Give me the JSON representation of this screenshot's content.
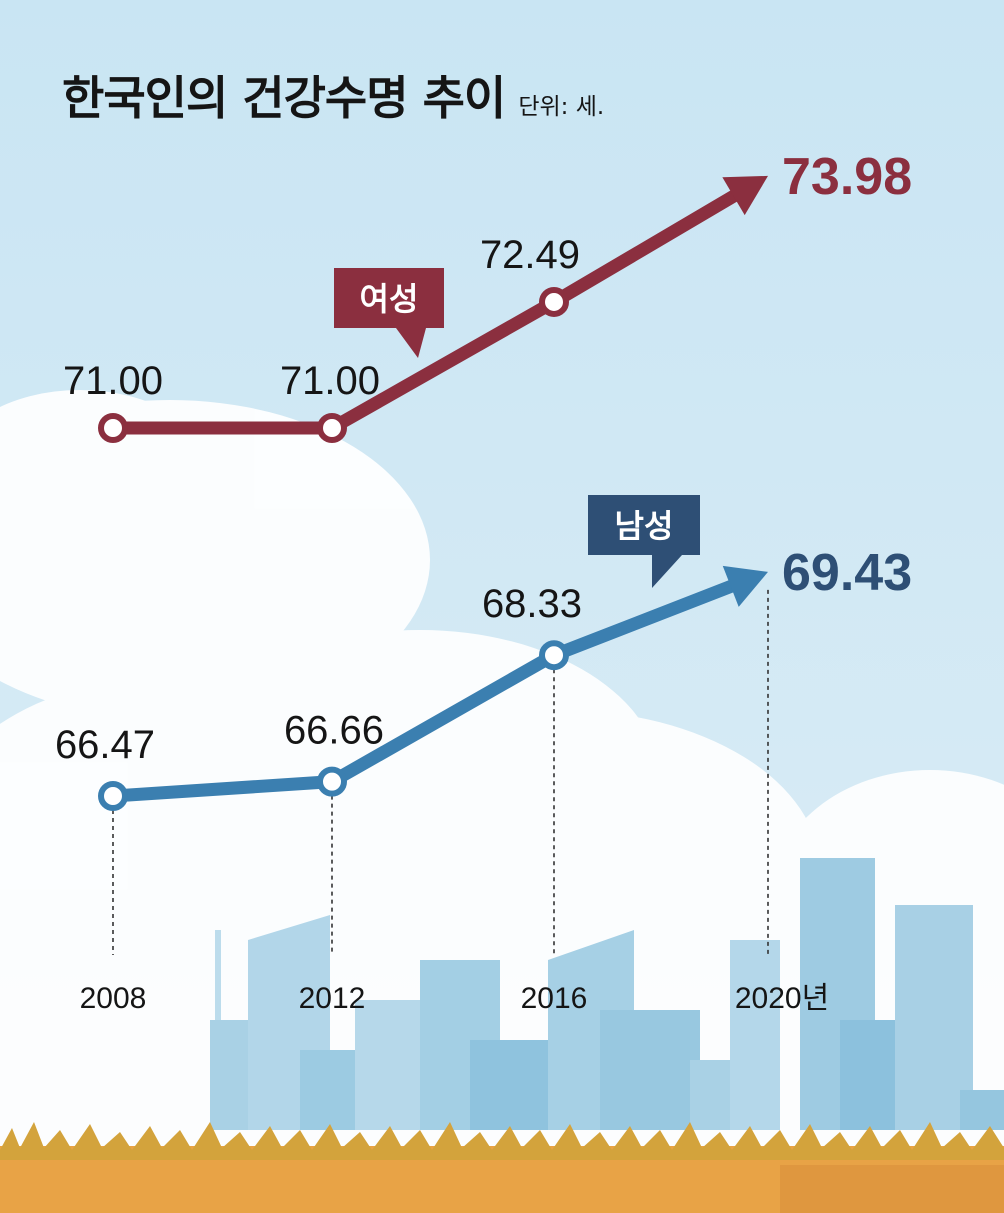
{
  "chart_data": {
    "type": "line",
    "title": "한국인의 건강수명 추이",
    "unit_label": "단위: 세.",
    "x_labels": [
      "2008",
      "2012",
      "2016",
      "2020년"
    ],
    "x": [
      2008,
      2012,
      2016,
      2020
    ],
    "series": [
      {
        "name": "여성",
        "values": [
          71.0,
          71.0,
          72.49,
          73.98
        ],
        "value_labels": [
          "71.00",
          "71.00",
          "72.49",
          "73.98"
        ],
        "color": "#8b2f3f"
      },
      {
        "name": "남성",
        "values": [
          66.47,
          66.66,
          68.33,
          69.43
        ],
        "value_labels": [
          "66.47",
          "66.66",
          "68.33",
          "69.43"
        ],
        "color": "#3b7fb0"
      }
    ],
    "badge_colors": [
      "#8b2f3f",
      "#2e4f75"
    ],
    "final_value_colors": [
      "#8b2f3f",
      "#2e4f75"
    ],
    "grid": false,
    "legend": "inline-badges"
  }
}
